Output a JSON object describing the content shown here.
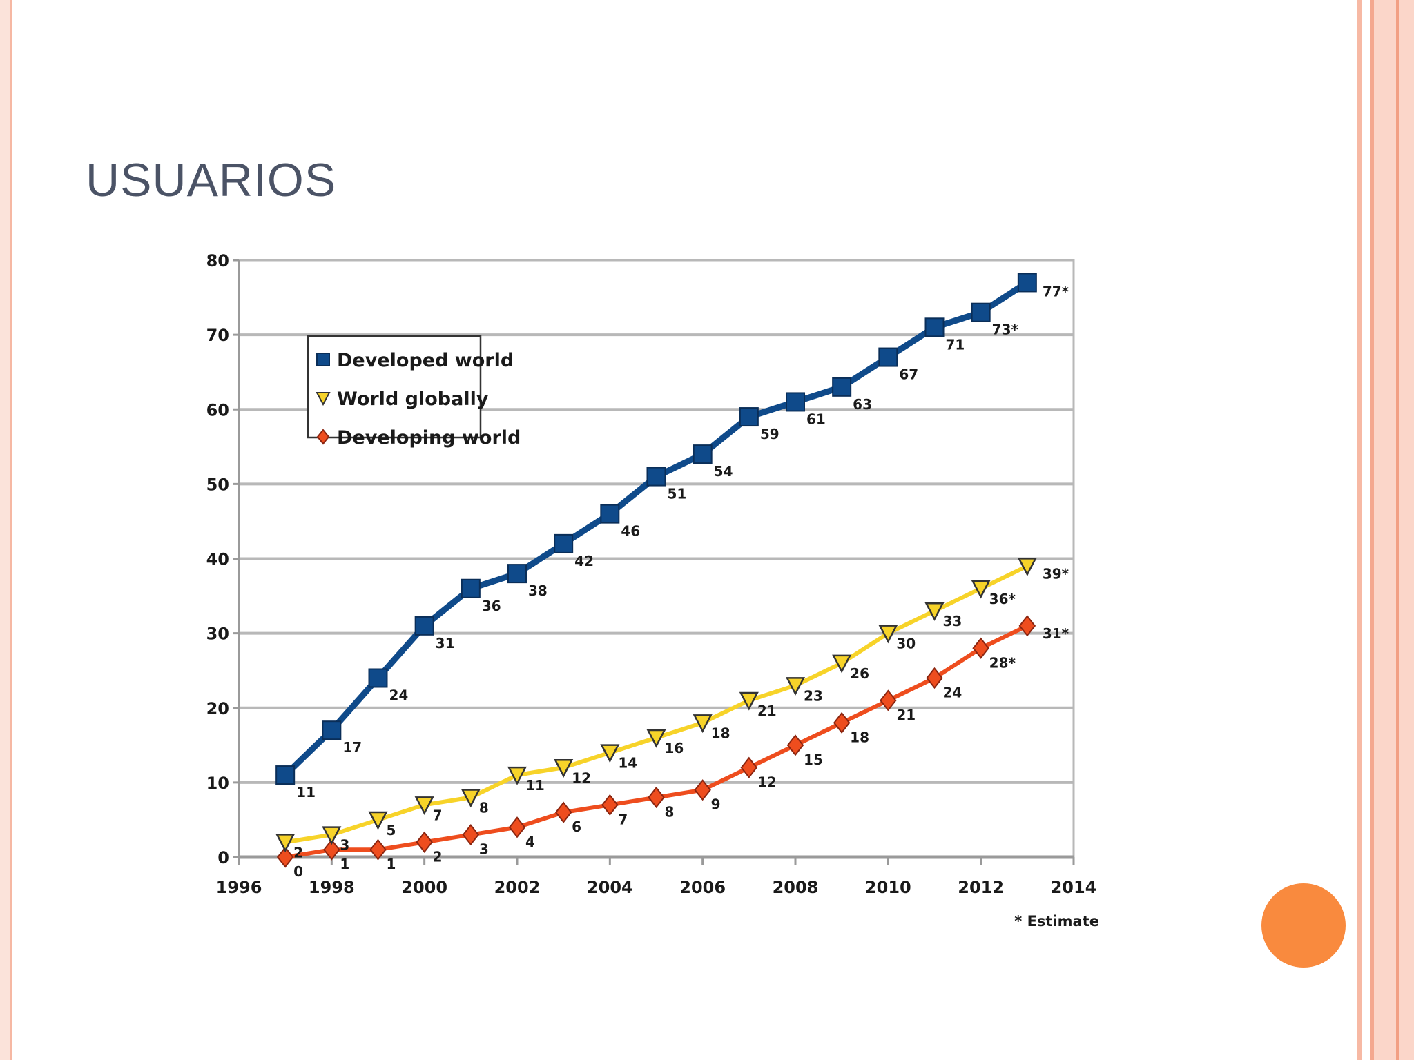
{
  "slide": {
    "title": "USUARIOS"
  },
  "chart_data": {
    "type": "line",
    "title": "",
    "xlabel": "",
    "ylabel": "",
    "xlim": [
      1996,
      2014
    ],
    "ylim": [
      0,
      80
    ],
    "x_ticks": [
      1996,
      1998,
      2000,
      2002,
      2004,
      2006,
      2008,
      2010,
      2012,
      2014
    ],
    "y_ticks": [
      0,
      10,
      20,
      30,
      40,
      50,
      60,
      70,
      80
    ],
    "grid": true,
    "legend_position": "top-left",
    "note": "* Estimate",
    "x": [
      1997,
      1998,
      1999,
      2000,
      2001,
      2002,
      2003,
      2004,
      2005,
      2006,
      2007,
      2008,
      2009,
      2010,
      2011,
      2012,
      2013
    ],
    "series": [
      {
        "name": "Developed world",
        "color": "#0f4a8a",
        "marker": "square",
        "values": [
          11,
          17,
          24,
          31,
          36,
          38,
          42,
          46,
          51,
          54,
          59,
          61,
          63,
          67,
          71,
          73,
          77
        ],
        "labels": [
          "11",
          "17",
          "24",
          "31",
          "36",
          "38",
          "42",
          "46",
          "51",
          "54",
          "59",
          "61",
          "63",
          "67",
          "71",
          "73*",
          "77*"
        ]
      },
      {
        "name": "World globally",
        "color": "#f7d329",
        "marker": "triangle-down",
        "values": [
          2,
          3,
          5,
          7,
          8,
          11,
          12,
          14,
          16,
          18,
          21,
          23,
          26,
          30,
          33,
          36,
          39
        ],
        "labels": [
          "2",
          "3",
          "5",
          "7",
          "8",
          "11",
          "12",
          "14",
          "16",
          "18",
          "21",
          "23",
          "26",
          "30",
          "33",
          "36*",
          "39*"
        ]
      },
      {
        "name": "Developing world",
        "color": "#ee4d1e",
        "marker": "diamond",
        "values": [
          0,
          1,
          1,
          2,
          3,
          4,
          6,
          7,
          8,
          9,
          12,
          15,
          18,
          21,
          24,
          28,
          31
        ],
        "labels": [
          "0",
          "1",
          "1",
          "2",
          "3",
          "4",
          "6",
          "7",
          "8",
          "9",
          "12",
          "15",
          "18",
          "21",
          "24",
          "28*",
          "31*"
        ]
      }
    ]
  }
}
